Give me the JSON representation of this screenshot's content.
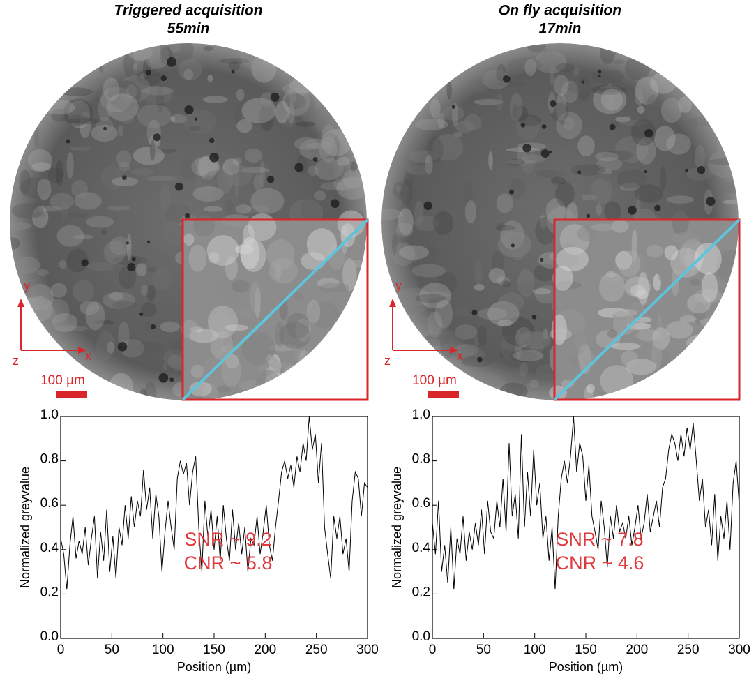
{
  "chart_data": [
    {
      "type": "line",
      "title": "Triggered acquisition",
      "subtitle": "55min",
      "xlabel": "Position (µm)",
      "ylabel": "Normalized greyvalue",
      "annotations": [
        "SNR ~ 9.2",
        "CNR ~ 5.8"
      ],
      "image_labels": {
        "x": "x",
        "y": "y",
        "z": "z",
        "scale_bar": "100 µm"
      },
      "color": "#000000",
      "x": [
        0,
        3,
        6,
        9,
        12,
        15,
        18,
        21,
        24,
        27,
        30,
        33,
        36,
        39,
        42,
        45,
        48,
        51,
        54,
        57,
        60,
        63,
        66,
        69,
        72,
        75,
        78,
        81,
        84,
        87,
        90,
        93,
        96,
        99,
        102,
        105,
        108,
        111,
        114,
        117,
        120,
        123,
        126,
        129,
        132,
        135,
        138,
        141,
        144,
        147,
        150,
        153,
        156,
        159,
        162,
        165,
        168,
        171,
        174,
        177,
        180,
        183,
        186,
        189,
        192,
        195,
        198,
        201,
        204,
        207,
        210,
        213,
        216,
        219,
        222,
        225,
        228,
        231,
        234,
        237,
        240,
        243,
        246,
        249,
        252,
        255,
        258,
        261,
        264,
        267,
        270,
        273,
        276,
        279,
        282,
        285,
        288,
        291,
        294,
        297,
        300
      ],
      "values": [
        0.45,
        0.38,
        0.22,
        0.42,
        0.55,
        0.36,
        0.44,
        0.38,
        0.5,
        0.33,
        0.45,
        0.55,
        0.27,
        0.48,
        0.35,
        0.58,
        0.3,
        0.46,
        0.27,
        0.5,
        0.42,
        0.6,
        0.45,
        0.64,
        0.5,
        0.62,
        0.55,
        0.76,
        0.58,
        0.68,
        0.45,
        0.65,
        0.55,
        0.3,
        0.48,
        0.62,
        0.5,
        0.4,
        0.72,
        0.8,
        0.74,
        0.79,
        0.6,
        0.75,
        0.82,
        0.5,
        0.3,
        0.62,
        0.45,
        0.58,
        0.4,
        0.55,
        0.35,
        0.6,
        0.45,
        0.35,
        0.58,
        0.4,
        0.52,
        0.38,
        0.5,
        0.3,
        0.45,
        0.42,
        0.55,
        0.38,
        0.48,
        0.6,
        0.42,
        0.35,
        0.5,
        0.62,
        0.75,
        0.8,
        0.72,
        0.78,
        0.68,
        0.82,
        0.75,
        0.88,
        0.8,
        1.0,
        0.85,
        0.92,
        0.7,
        0.88,
        0.5,
        0.38,
        0.27,
        0.55,
        0.45,
        0.55,
        0.38,
        0.45,
        0.3,
        0.62,
        0.75,
        0.72,
        0.55,
        0.7,
        0.68
      ],
      "xlim": [
        0,
        300
      ],
      "xticks": [
        0,
        50,
        100,
        150,
        200,
        250,
        300
      ],
      "ylim": [
        0,
        1
      ],
      "yticks": [
        {
          "value": 0,
          "label": "0.0"
        },
        0.2,
        0.4,
        0.6,
        0.8,
        {
          "value": 1,
          "label": "1.0"
        }
      ]
    },
    {
      "type": "line",
      "title": "On fly acquisition",
      "subtitle": "17min",
      "xlabel": "Position (µm)",
      "ylabel": "Normalized greyvalue",
      "annotations": [
        "SNR ~ 7.8",
        "CNR ~ 4.6"
      ],
      "image_labels": {
        "x": "x",
        "y": "y",
        "z": "z",
        "scale_bar": "100 µm"
      },
      "color": "#000000",
      "x": [
        0,
        3,
        6,
        9,
        12,
        15,
        18,
        21,
        24,
        27,
        30,
        33,
        36,
        39,
        42,
        45,
        48,
        51,
        54,
        57,
        60,
        63,
        66,
        69,
        72,
        75,
        78,
        81,
        84,
        87,
        90,
        93,
        96,
        99,
        102,
        105,
        108,
        111,
        114,
        117,
        120,
        123,
        126,
        129,
        132,
        135,
        138,
        141,
        144,
        147,
        150,
        153,
        156,
        159,
        162,
        165,
        168,
        171,
        174,
        177,
        180,
        183,
        186,
        189,
        192,
        195,
        198,
        201,
        204,
        207,
        210,
        213,
        216,
        219,
        222,
        225,
        228,
        231,
        234,
        237,
        240,
        243,
        246,
        249,
        252,
        255,
        258,
        261,
        264,
        267,
        270,
        273,
        276,
        279,
        282,
        285,
        288,
        291,
        294,
        297,
        300
      ],
      "values": [
        0.52,
        0.38,
        0.62,
        0.3,
        0.42,
        0.25,
        0.5,
        0.22,
        0.45,
        0.38,
        0.55,
        0.35,
        0.48,
        0.4,
        0.52,
        0.42,
        0.58,
        0.38,
        0.62,
        0.48,
        0.45,
        0.62,
        0.5,
        0.72,
        0.48,
        0.88,
        0.55,
        0.65,
        0.45,
        0.92,
        0.5,
        0.75,
        0.55,
        0.85,
        0.6,
        0.7,
        0.45,
        0.55,
        0.35,
        0.5,
        0.22,
        0.55,
        0.72,
        0.8,
        0.7,
        0.82,
        1.0,
        0.75,
        0.88,
        0.82,
        0.62,
        0.78,
        0.55,
        0.48,
        0.4,
        0.62,
        0.5,
        0.32,
        0.55,
        0.45,
        0.6,
        0.48,
        0.52,
        0.45,
        0.55,
        0.42,
        0.5,
        0.6,
        0.45,
        0.52,
        0.65,
        0.48,
        0.55,
        0.62,
        0.5,
        0.68,
        0.72,
        0.85,
        0.92,
        0.88,
        0.8,
        0.92,
        0.82,
        0.95,
        0.85,
        0.97,
        0.8,
        0.62,
        0.72,
        0.5,
        0.58,
        0.42,
        0.65,
        0.35,
        0.55,
        0.45,
        0.62,
        0.4,
        0.7,
        0.8,
        0.6
      ],
      "xlim": [
        0,
        300
      ],
      "xticks": [
        0,
        50,
        100,
        150,
        200,
        250,
        300
      ],
      "ylim": [
        0,
        1
      ],
      "yticks": [
        {
          "value": 0,
          "label": "0.0"
        },
        0.2,
        0.4,
        0.6,
        0.8,
        {
          "value": 1,
          "label": "1.0"
        }
      ]
    }
  ]
}
